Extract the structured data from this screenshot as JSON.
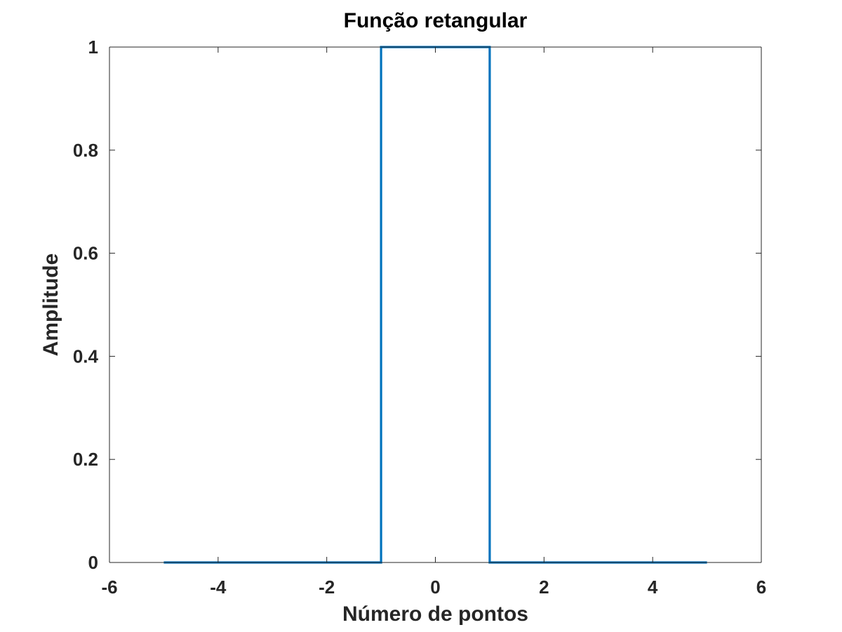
{
  "chart_data": {
    "type": "line",
    "title": "Função retangular",
    "xlabel": "Número de pontos",
    "ylabel": "Amplitude",
    "xlim": [
      -6,
      6
    ],
    "ylim": [
      0,
      1
    ],
    "xticks": [
      -6,
      -4,
      -2,
      0,
      2,
      4,
      6
    ],
    "yticks": [
      0,
      0.2,
      0.4,
      0.6,
      0.8,
      1
    ],
    "xtick_labels": [
      "-6",
      "-4",
      "-2",
      "0",
      "2",
      "4",
      "6"
    ],
    "ytick_labels": [
      "0",
      "0.2",
      "0.4",
      "0.6",
      "0.8",
      "1"
    ],
    "grid": false,
    "box": true,
    "series": [
      {
        "color": "#0072BD",
        "x": [
          -5,
          -1,
          -1,
          1,
          1,
          5
        ],
        "y": [
          0,
          0,
          1,
          1,
          0,
          0
        ]
      }
    ]
  }
}
